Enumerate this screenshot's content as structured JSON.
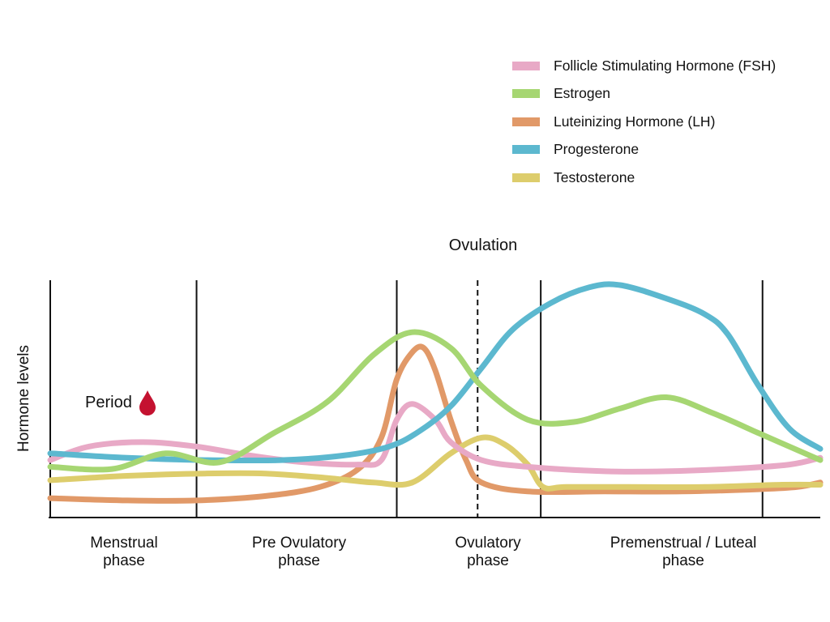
{
  "chart_data": {
    "type": "line",
    "title": "",
    "ylabel": "Hormone levels",
    "xlabel": "",
    "xlim": [
      0,
      100
    ],
    "ylim": [
      0,
      100
    ],
    "annotations": {
      "ovulation_label": "Ovulation",
      "period_label": "Period"
    },
    "phase_boundaries": [
      0,
      19,
      45,
      63.7,
      92.5
    ],
    "ovulation_x": 55.5,
    "phases": [
      {
        "line1": "Menstrual",
        "line2": "phase"
      },
      {
        "line1": "Pre Ovulatory",
        "line2": "phase"
      },
      {
        "line1": "Ovulatory",
        "line2": "phase"
      },
      {
        "line1": "Premenstrual / Luteal",
        "line2": "phase"
      }
    ],
    "series": [
      {
        "key": "fsh",
        "name": "Follicle Stimulating Hormone (FSH)",
        "color": "#e8a9c6",
        "x": [
          0,
          5,
          12,
          19,
          26,
          33,
          40,
          43,
          45,
          47,
          50,
          52,
          56,
          62,
          72,
          80,
          88,
          96,
          100
        ],
        "y": [
          22,
          28,
          30,
          28,
          24,
          21,
          20,
          22,
          40,
          47,
          40,
          30,
          22,
          19,
          17,
          17,
          18,
          20,
          23
        ]
      },
      {
        "key": "estrogen",
        "name": "Estrogen",
        "color": "#a6d672",
        "x": [
          0,
          8,
          15,
          22,
          29,
          36,
          42,
          47,
          52,
          56,
          62,
          68,
          74,
          80,
          86,
          92,
          96,
          100
        ],
        "y": [
          19,
          18,
          25,
          21,
          34,
          48,
          69,
          79,
          72,
          55,
          40,
          39,
          45,
          50,
          43,
          34,
          28,
          22
        ]
      },
      {
        "key": "lh",
        "name": "Luteinizing Hormone (LH)",
        "color": "#e19968",
        "x": [
          0,
          10,
          19,
          28,
          35,
          40,
          43,
          45,
          47,
          48.5,
          50,
          52,
          54,
          56,
          62,
          72,
          82,
          92,
          97,
          100
        ],
        "y": [
          5,
          4,
          4,
          6,
          10,
          18,
          32,
          58,
          70,
          72,
          62,
          40,
          22,
          12,
          8,
          8,
          8,
          9,
          10,
          12
        ]
      },
      {
        "key": "progesterone",
        "name": "Progesterone",
        "color": "#5cb8cf",
        "x": [
          0,
          10,
          20,
          30,
          38,
          44,
          48,
          52,
          56,
          60,
          65,
          70,
          74,
          80,
          85,
          88,
          92,
          96,
          100
        ],
        "y": [
          25,
          23,
          22,
          22,
          24,
          28,
          35,
          46,
          63,
          80,
          92,
          99,
          100,
          94,
          87,
          78,
          55,
          36,
          27
        ]
      },
      {
        "key": "testosterone",
        "name": "Testosterone",
        "color": "#ddcd6c",
        "x": [
          0,
          10,
          20,
          28,
          36,
          42,
          47,
          52,
          56,
          59,
          62,
          64,
          67,
          75,
          85,
          95,
          100
        ],
        "y": [
          13,
          15,
          16,
          16,
          14,
          12,
          12,
          25,
          32,
          29,
          20,
          10,
          10,
          10,
          10,
          11,
          11
        ]
      }
    ]
  }
}
